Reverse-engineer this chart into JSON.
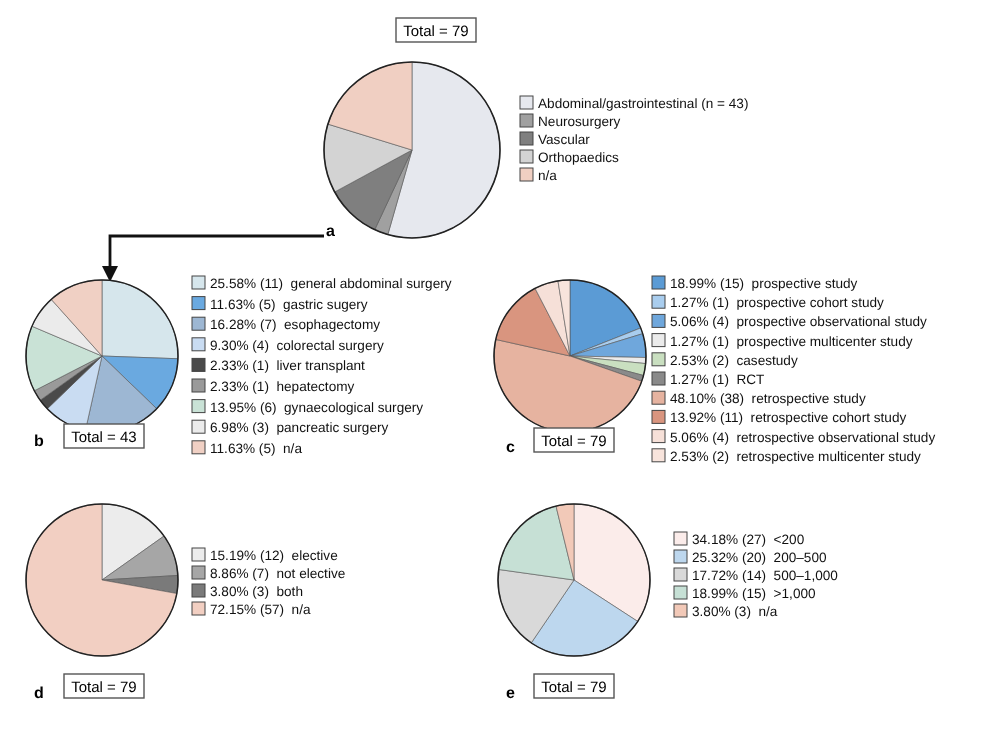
{
  "chart_data": [
    {
      "type": "pie",
      "title": "a",
      "annotations": [
        "Total = 79"
      ],
      "legend": "right",
      "categories": [
        "Abdominal/gastrointestinal (n = 43)",
        "Neurosurgery",
        "Vascular",
        "Orthopaedics",
        "n/a"
      ],
      "values": [
        54.43,
        2.53,
        10.13,
        12.66,
        20.25
      ],
      "colors": [
        "#e6e8ee",
        "#a0a0a0",
        "#7f7f7f",
        "#d3d3d3",
        "#f0cfc2"
      ]
    },
    {
      "type": "pie",
      "title": "b",
      "annotations": [
        "Total = 43"
      ],
      "legend": "right",
      "categories": [
        "general abdominal surgery",
        "gastric sugery",
        "esophagectomy",
        "colorectal surgery",
        "liver transplant",
        "hepatectomy",
        "gynaecological surgery",
        "pancreatic surgery",
        "n/a"
      ],
      "values": [
        25.58,
        11.63,
        16.28,
        9.3,
        2.33,
        2.33,
        13.95,
        6.98,
        11.63
      ],
      "value_labels": [
        "25.58% (11)",
        "11.63% (5)",
        "16.28% (7)",
        "9.30% (4)",
        "2.33% (1)",
        "2.33% (1)",
        "13.95% (6)",
        "6.98% (3)",
        "11.63% (5)"
      ],
      "colors": [
        "#d6e6ec",
        "#6aa9e0",
        "#9db7d3",
        "#c9dcf2",
        "#4a4a4a",
        "#9a9a9a",
        "#c9e2d6",
        "#ebebeb",
        "#f0d0c4"
      ]
    },
    {
      "type": "pie",
      "title": "c",
      "annotations": [
        "Total = 79"
      ],
      "legend": "right",
      "categories": [
        "prospective study",
        "prospective cohort study",
        "prospective observational study",
        "prospective multicenter study",
        "casestudy",
        "RCT",
        "retrospective study",
        "retrospective cohort study",
        "retrospective observational study",
        "retrospective multicenter study"
      ],
      "values": [
        18.99,
        1.27,
        5.06,
        1.27,
        2.53,
        1.27,
        48.1,
        13.92,
        5.06,
        2.53
      ],
      "value_labels": [
        "18.99% (15)",
        "1.27% (1)",
        "5.06% (4)",
        "1.27% (1)",
        "2.53% (2)",
        "1.27% (1)",
        "48.10% (38)",
        "13.92% (11)",
        "5.06% (4)",
        "2.53% (2)"
      ],
      "colors": [
        "#5b9bd5",
        "#a9cdee",
        "#6fa7dc",
        "#ebebeb",
        "#c9dfc0",
        "#8a8a8a",
        "#e6b3a0",
        "#d9957f",
        "#f6e0d8",
        "#f8e4dc"
      ]
    },
    {
      "type": "pie",
      "title": "d",
      "annotations": [
        "Total = 79"
      ],
      "legend": "right",
      "categories": [
        "elective",
        "not elective",
        "both",
        "n/a"
      ],
      "values": [
        15.19,
        8.86,
        3.8,
        72.15
      ],
      "value_labels": [
        "15.19% (12)",
        "8.86% (7)",
        "3.80% (3)",
        "72.15% (57)"
      ],
      "colors": [
        "#ececec",
        "#a6a6a6",
        "#7a7a7a",
        "#f2cfc2"
      ]
    },
    {
      "type": "pie",
      "title": "e",
      "annotations": [
        "Total = 79"
      ],
      "legend": "right",
      "categories": [
        "<200",
        "200–500",
        "500–1,000",
        ">1,000",
        "n/a"
      ],
      "values": [
        34.18,
        25.32,
        17.72,
        18.99,
        3.8
      ],
      "value_labels": [
        "34.18% (27)",
        "25.32% (20)",
        "17.72% (14)",
        "18.99% (15)",
        "3.80% (3)"
      ],
      "colors": [
        "#fbecea",
        "#bdd7ee",
        "#d9d9d9",
        "#c6e0d5",
        "#f2c9b8"
      ]
    }
  ]
}
